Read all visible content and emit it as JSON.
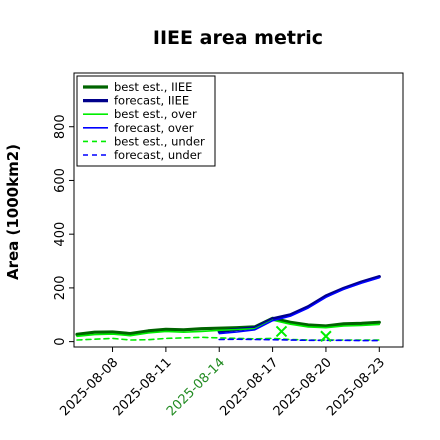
{
  "chart_data": {
    "type": "line",
    "title": "IIEE area metric",
    "xlabel": "",
    "ylabel": "Area (1000km2)",
    "ylim": [
      -20,
      1000
    ],
    "yticks": [
      0,
      200,
      400,
      600,
      800
    ],
    "xlim": [
      "2025-08-05T20:00",
      "2025-08-24T08:00"
    ],
    "xtick_labels": [
      "2025-08-08",
      "2025-08-11",
      "2025-08-14",
      "2025-08-17",
      "2025-08-20",
      "2025-08-23"
    ],
    "xtick_dates": [
      "2025-08-08",
      "2025-08-11",
      "2025-08-14",
      "2025-08-17",
      "2025-08-20",
      "2025-08-23"
    ],
    "xtick_colors": [
      "#000000",
      "#000000",
      "#228b22",
      "#000000",
      "#000000",
      "#000000"
    ],
    "grid": false,
    "legend_position": "top-left",
    "series": [
      {
        "name": "best est., IIEE",
        "color": "#006400",
        "width": 3.2,
        "dash": "",
        "x": [
          "2025-08-06",
          "2025-08-07",
          "2025-08-08",
          "2025-08-09",
          "2025-08-10",
          "2025-08-11",
          "2025-08-12",
          "2025-08-13",
          "2025-08-14",
          "2025-08-15",
          "2025-08-16",
          "2025-08-17",
          "2025-08-18",
          "2025-08-19",
          "2025-08-20",
          "2025-08-21",
          "2025-08-22",
          "2025-08-23"
        ],
        "y": [
          27,
          35,
          36,
          30,
          40,
          46,
          44,
          48,
          50,
          52,
          55,
          87,
          72,
          62,
          58,
          66,
          68,
          72
        ]
      },
      {
        "name": "forecast, IIEE",
        "color": "#00008b",
        "width": 3.2,
        "dash": "",
        "x": [
          "2025-08-14",
          "2025-08-15",
          "2025-08-16",
          "2025-08-17",
          "2025-08-18",
          "2025-08-19",
          "2025-08-20",
          "2025-08-21",
          "2025-08-22",
          "2025-08-23"
        ],
        "y": [
          38,
          45,
          52,
          85,
          100,
          130,
          170,
          198,
          222,
          242
        ]
      },
      {
        "name": "best est., over",
        "color": "#00ee00",
        "width": 1.6,
        "dash": "",
        "x": [
          "2025-08-06",
          "2025-08-07",
          "2025-08-08",
          "2025-08-09",
          "2025-08-10",
          "2025-08-11",
          "2025-08-12",
          "2025-08-13",
          "2025-08-14",
          "2025-08-15",
          "2025-08-16",
          "2025-08-17",
          "2025-08-18",
          "2025-08-19",
          "2025-08-20",
          "2025-08-21",
          "2025-08-22",
          "2025-08-23"
        ],
        "y": [
          20,
          26,
          28,
          22,
          32,
          38,
          35,
          38,
          42,
          45,
          48,
          80,
          65,
          55,
          52,
          58,
          60,
          64
        ]
      },
      {
        "name": "forecast, over",
        "color": "#0000ff",
        "width": 1.6,
        "dash": "",
        "x": [
          "2025-08-14",
          "2025-08-15",
          "2025-08-16",
          "2025-08-17",
          "2025-08-18",
          "2025-08-19",
          "2025-08-20",
          "2025-08-21",
          "2025-08-22",
          "2025-08-23"
        ],
        "y": [
          30,
          36,
          44,
          78,
          95,
          125,
          165,
          195,
          218,
          238
        ]
      },
      {
        "name": "best est., under",
        "color": "#00ee00",
        "width": 1.6,
        "dash": "5,4",
        "x": [
          "2025-08-06",
          "2025-08-07",
          "2025-08-08",
          "2025-08-09",
          "2025-08-10",
          "2025-08-11",
          "2025-08-12",
          "2025-08-13",
          "2025-08-14",
          "2025-08-15",
          "2025-08-16",
          "2025-08-17",
          "2025-08-18",
          "2025-08-19",
          "2025-08-20",
          "2025-08-21",
          "2025-08-22",
          "2025-08-23"
        ],
        "y": [
          6,
          9,
          12,
          6,
          7,
          12,
          14,
          16,
          14,
          12,
          10,
          12,
          8,
          6,
          6,
          6,
          6,
          6
        ]
      },
      {
        "name": "forecast, under",
        "color": "#0000ff",
        "width": 1.6,
        "dash": "5,4",
        "x": [
          "2025-08-14",
          "2025-08-15",
          "2025-08-16",
          "2025-08-17",
          "2025-08-18",
          "2025-08-19",
          "2025-08-20",
          "2025-08-21",
          "2025-08-22",
          "2025-08-23"
        ],
        "y": [
          8,
          9,
          8,
          7,
          6,
          5,
          5,
          5,
          4,
          4
        ]
      }
    ],
    "annotations": [
      {
        "type": "x-marker",
        "x": "2025-08-17T12:00",
        "y": 38,
        "color": "#00ee00"
      },
      {
        "type": "x-marker",
        "x": "2025-08-20T00:00",
        "y": 20,
        "color": "#00ee00"
      }
    ]
  }
}
